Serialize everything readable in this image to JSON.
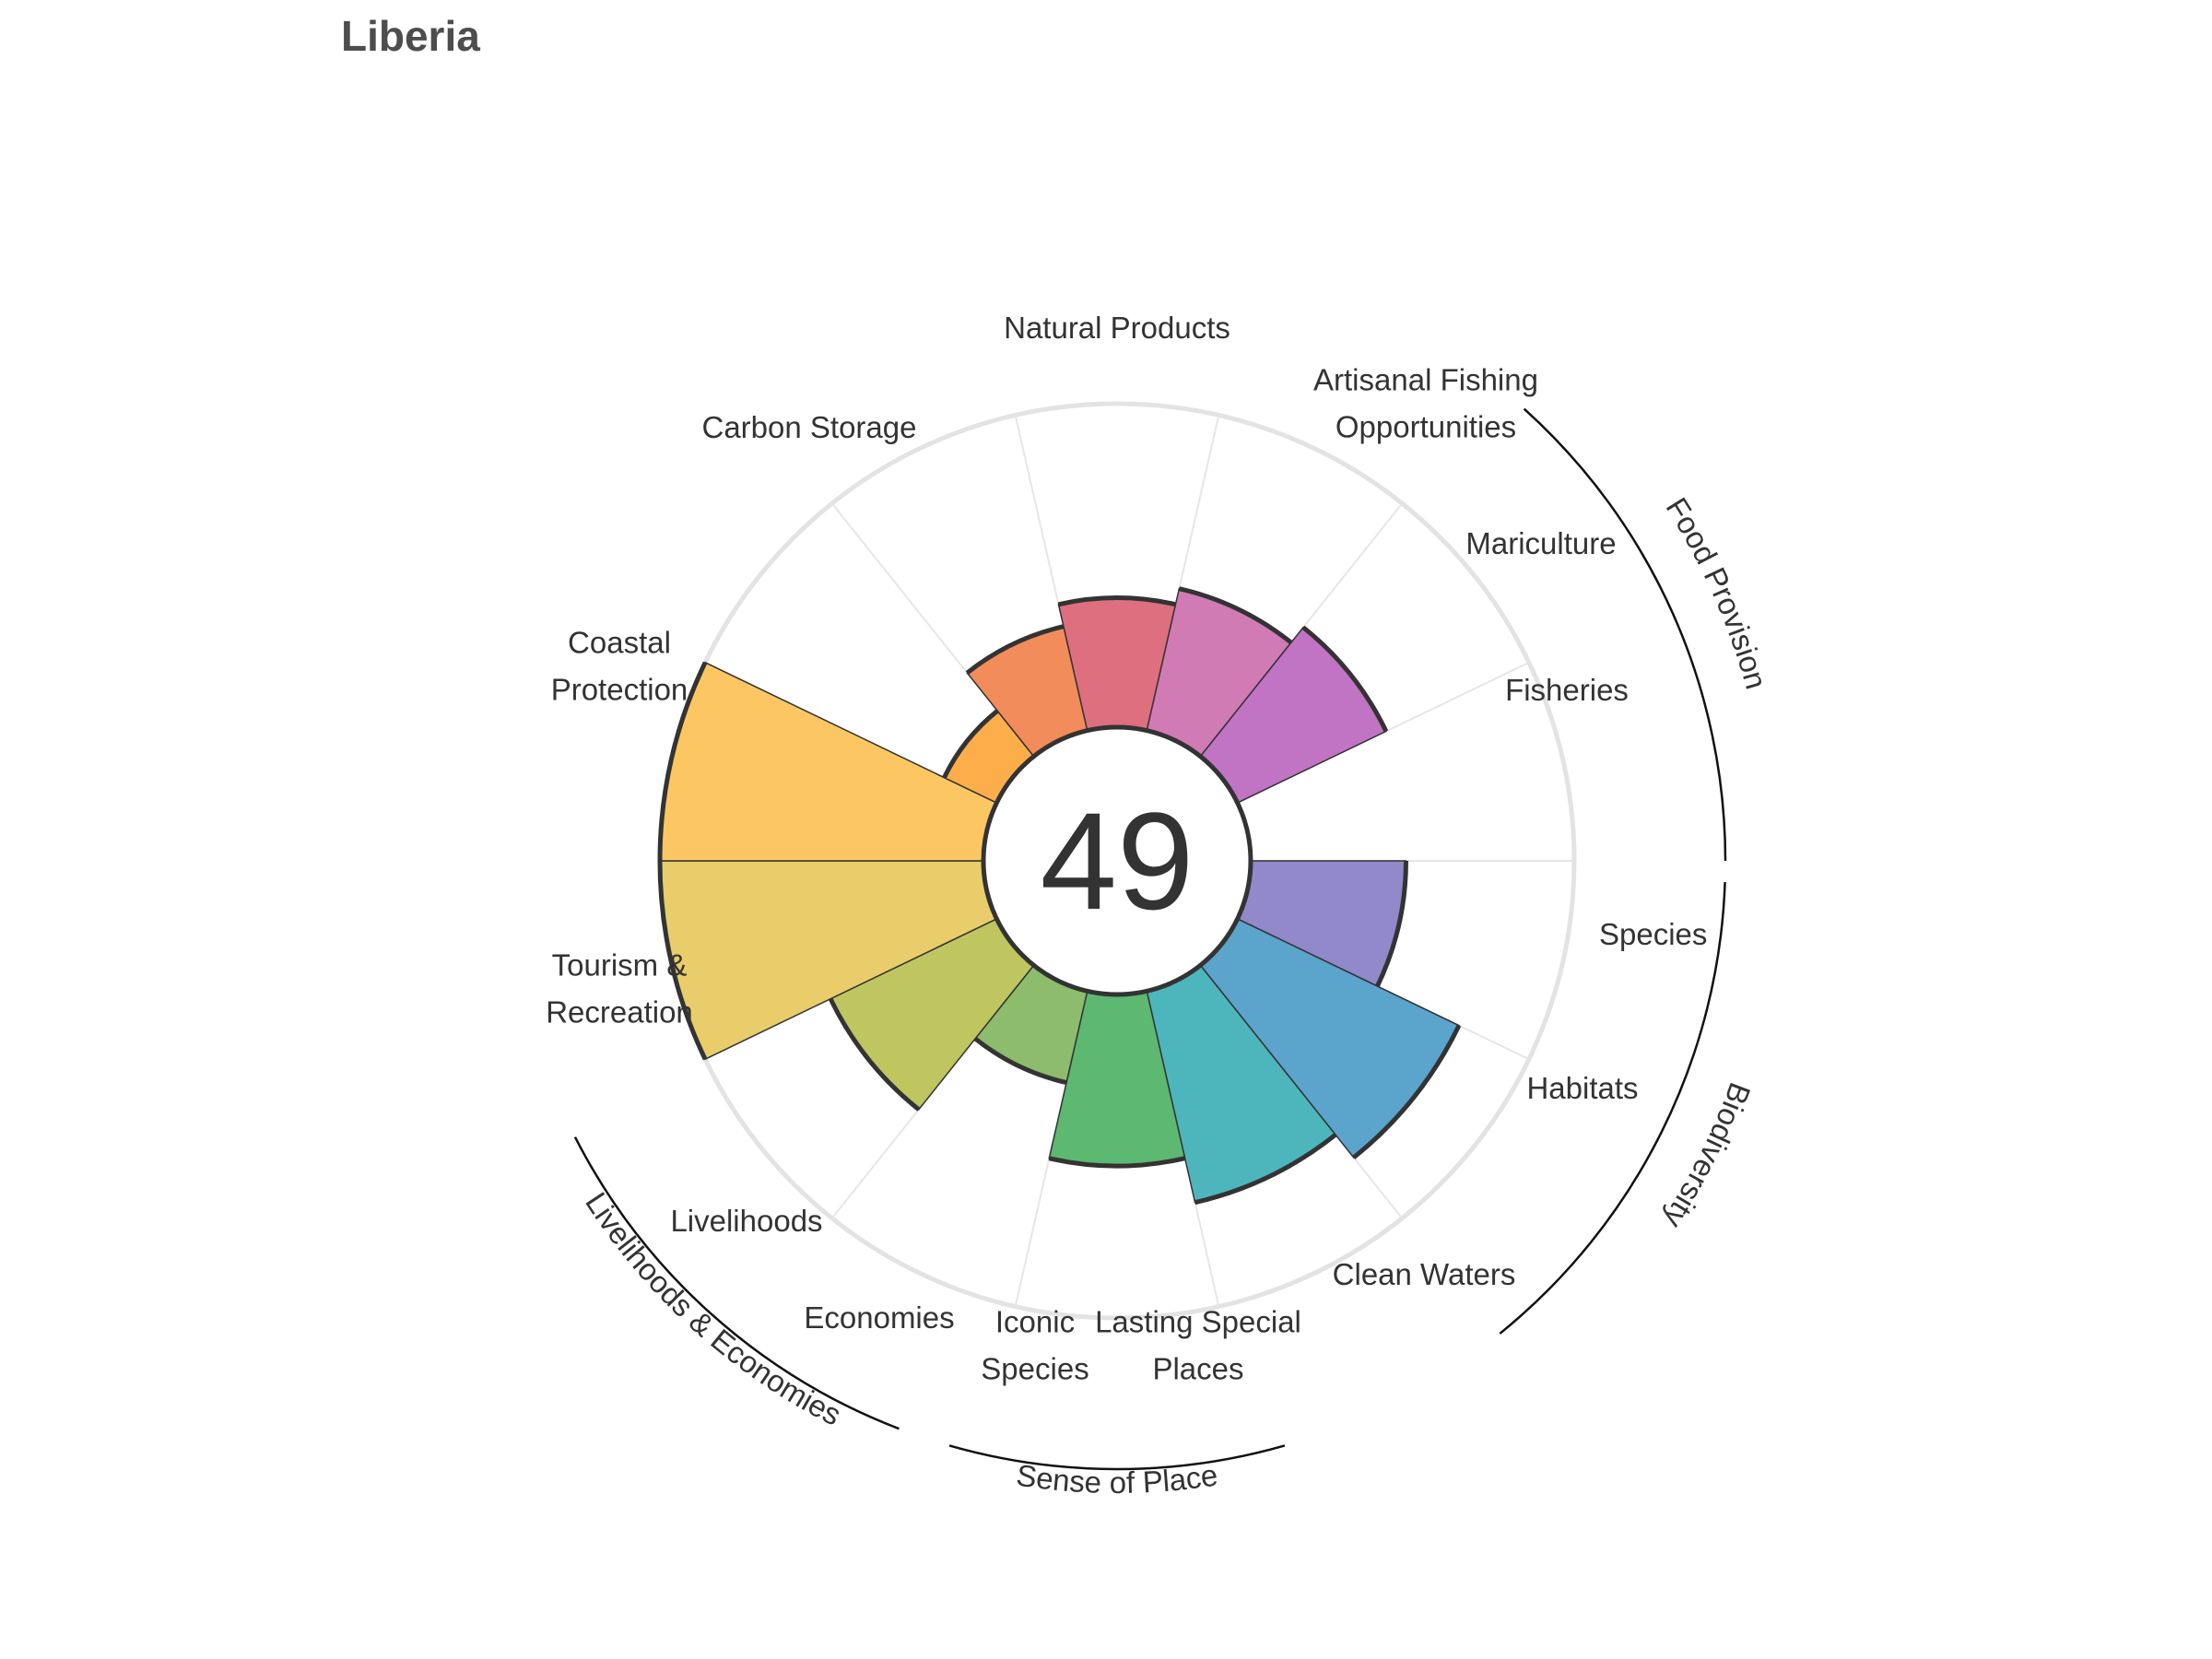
{
  "page": {
    "title": "Liberia"
  },
  "chart_data": {
    "type": "bar",
    "subtype": "polar-flower",
    "overall_score": "49",
    "ylim": [
      0,
      100
    ],
    "categories": [
      {
        "label": [
          "Fisheries"
        ],
        "value": 48,
        "color": "#9189C9"
      },
      {
        "label": [
          "Species"
        ],
        "value": 76,
        "color": "#5BA4CC"
      },
      {
        "label": [
          "Habitats"
        ],
        "value": 67,
        "color": "#4DB6BC"
      },
      {
        "label": [
          "Clean Waters"
        ],
        "value": 53,
        "color": "#5DB871"
      },
      {
        "label": [
          "Lasting Special",
          "Places"
        ],
        "value": 29,
        "color": "#8CBC6C"
      },
      {
        "label": [
          "Iconic",
          "Species"
        ],
        "value": 57,
        "color": "#BFC65F"
      },
      {
        "label": [
          "Economies"
        ],
        "value": 100,
        "color": "#E8CD6A"
      },
      {
        "label": [
          "Livelihoods"
        ],
        "value": 100,
        "color": "#FCC663"
      },
      {
        "label": [
          "Tourism &",
          "Recreation"
        ],
        "value": 18,
        "color": "#FDAE4A"
      },
      {
        "label": [
          "Coastal",
          "Protection"
        ],
        "value": 33,
        "color": "#F28C5A"
      },
      {
        "label": [
          "Carbon Storage"
        ],
        "value": 40,
        "color": "#DE6F7E"
      },
      {
        "label": [
          "Natural Products"
        ],
        "value": 45,
        "color": "#D17BB5"
      },
      {
        "label": [
          "Artisanal Fishing",
          "Opportunities"
        ],
        "value": 51,
        "color": "#C074C3"
      },
      {
        "label": [
          "Mariculture"
        ],
        "value": 0,
        "color": "#A27BC8"
      }
    ],
    "groups": [
      {
        "name": "Food Provision"
      },
      {
        "name": "Biodiversity"
      },
      {
        "name": "Sense of Place"
      },
      {
        "name": "Livelihoods & Economies"
      }
    ]
  }
}
